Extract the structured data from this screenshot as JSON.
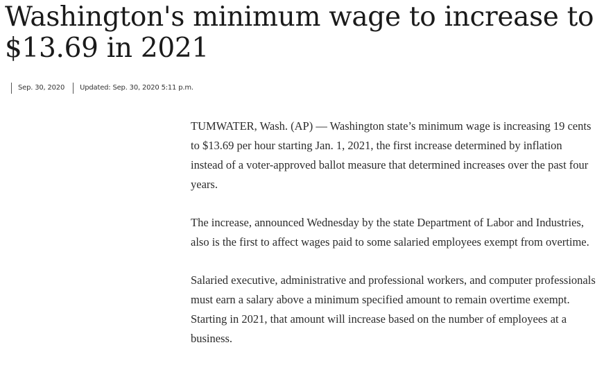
{
  "article": {
    "headline": "Washington's minimum wage to increase to $13.69 in 2021",
    "published_date": "Sep. 30, 2020",
    "updated": "Updated: Sep. 30, 2020 5:11 p.m.",
    "paragraphs": [
      "TUMWATER, Wash. (AP) — Washington state’s minimum wage is increasing 19 cents to $13.69 per hour starting Jan. 1, 2021, the first increase determined by inflation instead of a voter-approved ballot measure that determined increases over the past four years.",
      "The increase, announced Wednesday by the state Department of Labor and Industries, also is the first to affect wages paid to some salaried employees exempt from overtime.",
      "Salaried executive, administrative and professional workers, and computer professionals must earn a salary above a minimum specified amount to remain overtime exempt. Starting in 2021, that amount will increase based on the number of employees at a business."
    ]
  }
}
